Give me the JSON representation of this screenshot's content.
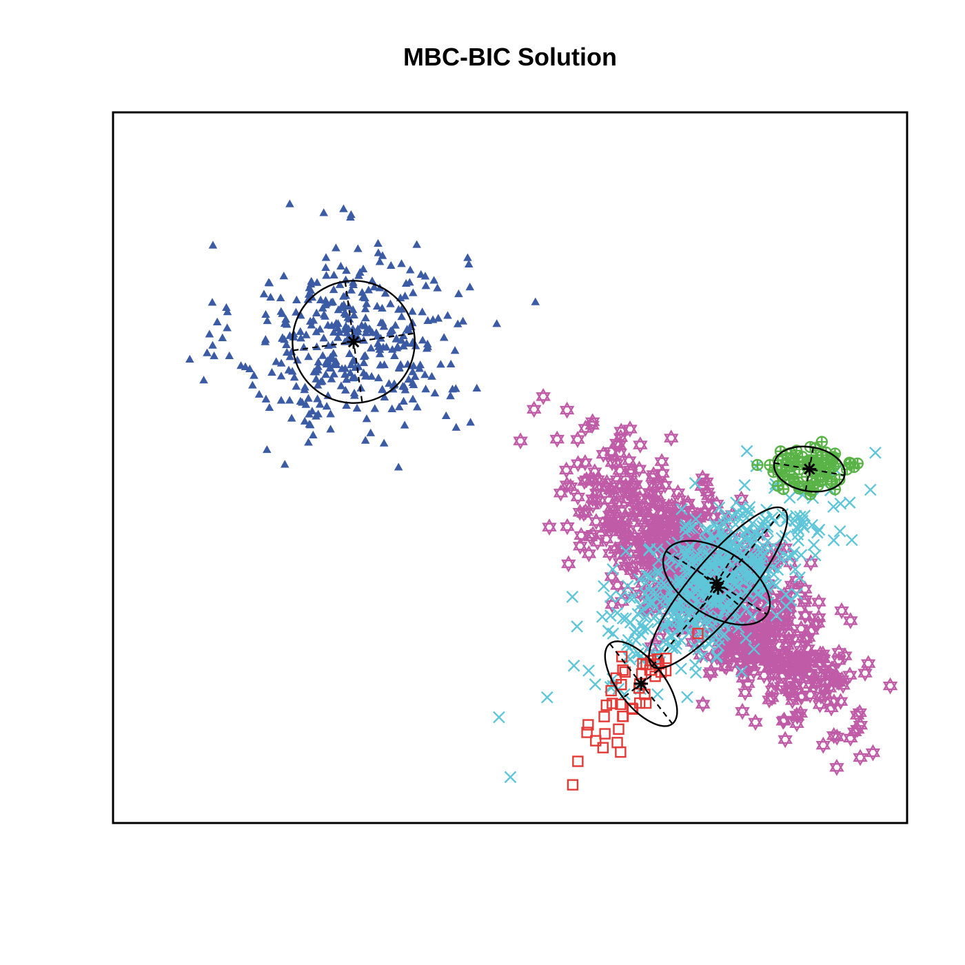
{
  "chart_data": {
    "type": "scatter",
    "title": "MBC-BIC Solution",
    "xlabel": "",
    "ylabel": "",
    "grid": false,
    "legend": false,
    "axis_ticks": false,
    "xlim": [
      0,
      100
    ],
    "ylim": [
      0,
      100
    ],
    "clusters": [
      {
        "id": "cluster-1",
        "marker": "triangle",
        "color": "#3b5ba5",
        "center": [
          30,
          68
        ],
        "spread": [
          7.2,
          6.8
        ],
        "rho": 0.0,
        "count": 380,
        "mean": [
          30.3,
          67.7
        ],
        "ellipse": {
          "rx": 7.7,
          "ry": 8.6,
          "angle": -8,
          "linestyle": "solid"
        }
      },
      {
        "id": "cluster-2",
        "marker": "hexagram",
        "color": "#c05ba8",
        "center": [
          76,
          33
        ],
        "spread": [
          8.5,
          9.0
        ],
        "rho": -0.8,
        "count": 900,
        "mean": [
          76.2,
          33.1
        ],
        "ellipse": {
          "rx": 12.9,
          "ry": 3.9,
          "angle": -50,
          "linestyle": "solid"
        }
      },
      {
        "id": "cluster-3",
        "marker": "cross",
        "color": "#5ec6d8",
        "center": [
          75.5,
          34
        ],
        "spread": [
          6.5,
          6.0
        ],
        "rho": 0.6,
        "count": 550,
        "mean": [
          76.0,
          33.8
        ],
        "ellipse": {
          "rx": 7.5,
          "ry": 4.6,
          "angle": 32,
          "linestyle": "solid"
        }
      },
      {
        "id": "cluster-4",
        "marker": "circle-plus",
        "color": "#59b346",
        "center": [
          88,
          49.5
        ],
        "spread": [
          3.0,
          1.9
        ],
        "rho": 0.1,
        "count": 85,
        "mean": [
          87.7,
          49.8
        ],
        "ellipse": {
          "rx": 4.5,
          "ry": 3.1,
          "angle": 10,
          "linestyle": "solid"
        }
      },
      {
        "id": "cluster-5",
        "marker": "square",
        "color": "#e53935",
        "center": [
          64.5,
          17
        ],
        "spread": [
          3.5,
          4.5
        ],
        "rho": 0.7,
        "count": 42,
        "mean": [
          66.5,
          19.6
        ],
        "ellipse": {
          "rx": 6.4,
          "ry": 3.2,
          "angle": 52,
          "linestyle": "solid"
        }
      }
    ]
  }
}
